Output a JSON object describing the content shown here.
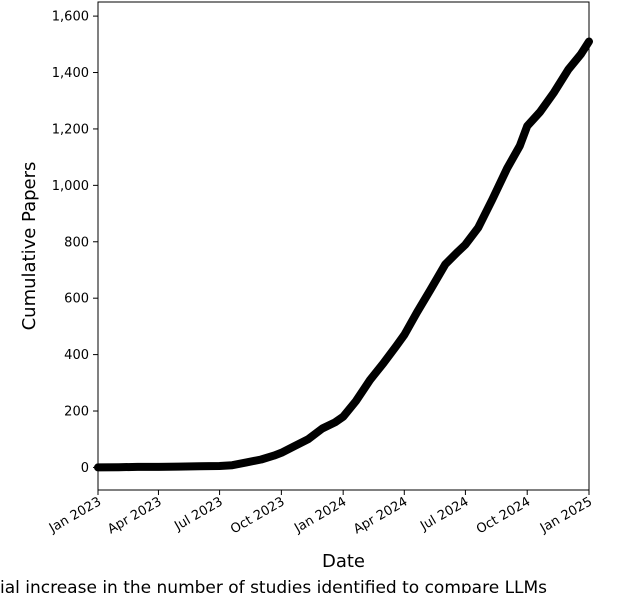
{
  "chart_data": {
    "type": "line",
    "title": "",
    "xlabel": "Date",
    "ylabel": "Cumulative Papers",
    "xlim": [
      "2023-01-01",
      "2025-01-01"
    ],
    "ylim": [
      -80,
      1650
    ],
    "x_ticks": [
      "2023-01-01",
      "2023-04-01",
      "2023-07-01",
      "2023-10-01",
      "2024-01-01",
      "2024-04-01",
      "2024-07-01",
      "2024-10-01",
      "2025-01-01"
    ],
    "x_tick_labels": [
      "Jan 2023",
      "Apr 2023",
      "Jul 2023",
      "Oct 2023",
      "Jan 2024",
      "Apr 2024",
      "Jul 2024",
      "Oct 2024",
      "Jan 2025"
    ],
    "y_ticks": [
      0,
      200,
      400,
      600,
      800,
      1000,
      1200,
      1400,
      1600
    ],
    "y_tick_labels": [
      "0",
      "200",
      "400",
      "600",
      "800",
      "1,000",
      "1,200",
      "1,400",
      "1,600"
    ],
    "grid": false,
    "series": [
      {
        "color": "#000000",
        "x": [
          "2023-01-01",
          "2023-02-01",
          "2023-03-01",
          "2023-04-01",
          "2023-05-01",
          "2023-06-01",
          "2023-07-01",
          "2023-07-20",
          "2023-08-10",
          "2023-09-01",
          "2023-09-20",
          "2023-10-01",
          "2023-10-20",
          "2023-11-10",
          "2023-12-01",
          "2023-12-20",
          "2024-01-01",
          "2024-01-20",
          "2024-02-10",
          "2024-03-01",
          "2024-03-20",
          "2024-04-01",
          "2024-04-20",
          "2024-05-10",
          "2024-06-01",
          "2024-06-20",
          "2024-07-01",
          "2024-07-20",
          "2024-08-10",
          "2024-09-01",
          "2024-09-20",
          "2024-10-01",
          "2024-10-20",
          "2024-11-10",
          "2024-12-01",
          "2024-12-20",
          "2025-01-01"
        ],
        "y": [
          0,
          1,
          2,
          2,
          3,
          4,
          5,
          8,
          18,
          28,
          42,
          52,
          75,
          100,
          138,
          160,
          180,
          235,
          310,
          370,
          430,
          470,
          550,
          630,
          720,
          765,
          790,
          850,
          950,
          1060,
          1140,
          1210,
          1260,
          1330,
          1410,
          1465,
          1510
        ]
      }
    ]
  },
  "caption": {
    "text": "ial increase in the number of studies identified to compare LLMs"
  }
}
